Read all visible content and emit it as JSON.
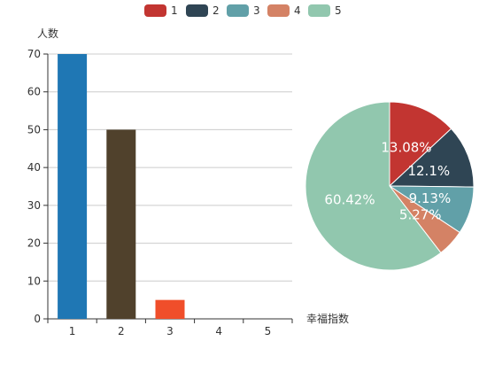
{
  "chart_data": [
    {
      "type": "bar",
      "categories": [
        "1",
        "2",
        "3",
        "4",
        "5"
      ],
      "values": [
        70,
        50,
        5,
        0,
        0
      ],
      "bar_colors": [
        "#1f77b4",
        "#50412c",
        "#f04e2a",
        "#1f77b4",
        "#1f77b4"
      ],
      "ylabel": "人数",
      "xlabel": "幸福指数",
      "ylim": [
        0,
        70
      ],
      "yticks": [
        0,
        10,
        20,
        30,
        40,
        50,
        60,
        70
      ],
      "grid": true
    },
    {
      "type": "pie",
      "labels": [
        "1",
        "2",
        "3",
        "4",
        "5"
      ],
      "values": [
        13.08,
        12.1,
        9.13,
        5.27,
        60.42
      ],
      "percent_labels": [
        "13.08%",
        "12.1%",
        "9.13%",
        "5.27%",
        "60.42%"
      ],
      "colors": [
        "#c23531",
        "#2f4554",
        "#61a0a8",
        "#d48265",
        "#91c7ae"
      ]
    }
  ],
  "legend": {
    "placement": "top",
    "items": [
      {
        "label": "1",
        "color": "#c23531"
      },
      {
        "label": "2",
        "color": "#2f4554"
      },
      {
        "label": "3",
        "color": "#61a0a8"
      },
      {
        "label": "4",
        "color": "#d48265"
      },
      {
        "label": "5",
        "color": "#91c7ae"
      }
    ]
  }
}
